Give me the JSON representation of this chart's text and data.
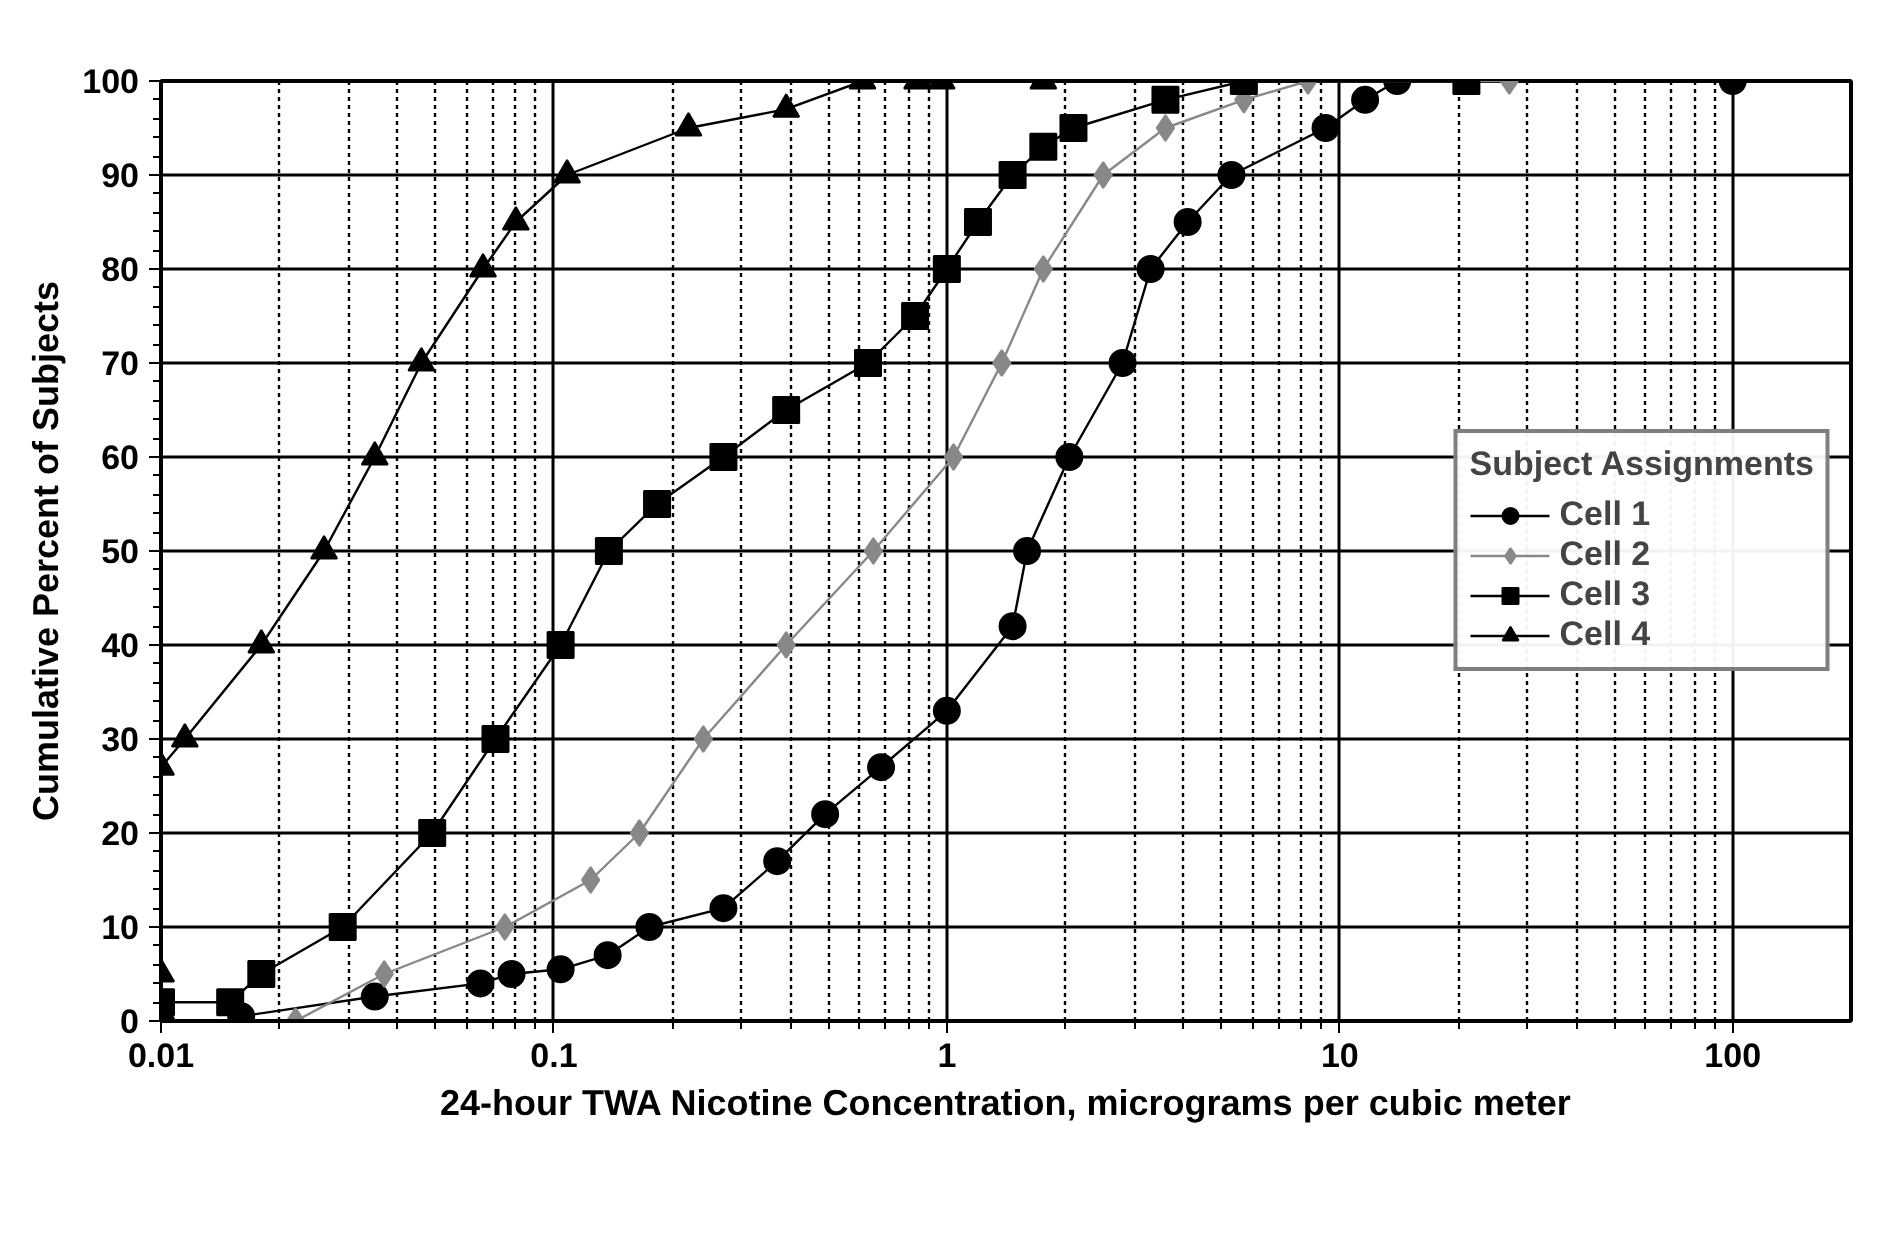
{
  "chart_data": {
    "type": "line",
    "xlabel": "24-hour TWA Nicotine Concentration, micrograms per cubic meter",
    "ylabel": "Cumulative Percent of Subjects",
    "legend_title": "Subject Assignments",
    "log": "x",
    "xlim": [
      0.01,
      200
    ],
    "xticks": [
      0.01,
      0.1,
      1,
      10,
      100
    ],
    "ylim": [
      0,
      100
    ],
    "yticks": [
      0,
      10,
      20,
      30,
      40,
      50,
      60,
      70,
      80,
      90,
      100
    ],
    "grid": true,
    "legend": "right",
    "series": [
      {
        "name": "Cell 1",
        "color": "#000000",
        "marker": "circle",
        "x": [
          0.016,
          0.035,
          0.065,
          0.078,
          0.104,
          0.137,
          0.175,
          0.27,
          0.37,
          0.49,
          0.68,
          1.0,
          1.47,
          1.6,
          2.05,
          2.8,
          3.3,
          4.1,
          5.3,
          9.2,
          11.6,
          14,
          100
        ],
        "values": [
          0.5,
          2.6,
          4,
          5,
          5.5,
          7,
          10,
          12,
          17,
          22,
          27,
          33,
          42,
          50,
          60,
          70,
          80,
          85,
          90,
          95,
          98,
          100,
          100
        ]
      },
      {
        "name": "Cell 2",
        "color": "#888888",
        "marker": "diamond",
        "x": [
          0.022,
          0.037,
          0.075,
          0.124,
          0.165,
          0.24,
          0.39,
          0.65,
          1.04,
          1.38,
          1.76,
          2.5,
          3.6,
          5.7,
          8.3,
          27
        ],
        "values": [
          0,
          5,
          10,
          15,
          20,
          30,
          40,
          50,
          60,
          70,
          80,
          90,
          95,
          98,
          100,
          100
        ]
      },
      {
        "name": "Cell 3",
        "color": "#000000",
        "marker": "square",
        "x": [
          0.01,
          0.015,
          0.018,
          0.029,
          0.049,
          0.071,
          0.104,
          0.138,
          0.183,
          0.27,
          0.39,
          0.63,
          0.83,
          1.0,
          1.2,
          1.47,
          1.76,
          2.1,
          3.6,
          5.7,
          21
        ],
        "values": [
          2,
          2,
          5,
          10,
          20,
          30,
          40,
          50,
          55,
          60,
          65,
          70,
          75,
          80,
          85,
          90,
          93,
          95,
          98,
          100,
          100
        ]
      },
      {
        "name": "Cell 4",
        "color": "#000000",
        "marker": "triangle",
        "x": [
          0.01,
          0.01,
          0.01,
          0.0115,
          0.018,
          0.026,
          0.035,
          0.046,
          0.066,
          0.08,
          0.108,
          0.22,
          0.39,
          0.61,
          0.84,
          0.97,
          1.76
        ],
        "values": [
          1,
          5,
          27,
          30,
          40,
          50,
          60,
          70,
          80,
          85,
          90,
          95,
          97,
          100,
          100,
          100,
          100
        ]
      }
    ]
  }
}
